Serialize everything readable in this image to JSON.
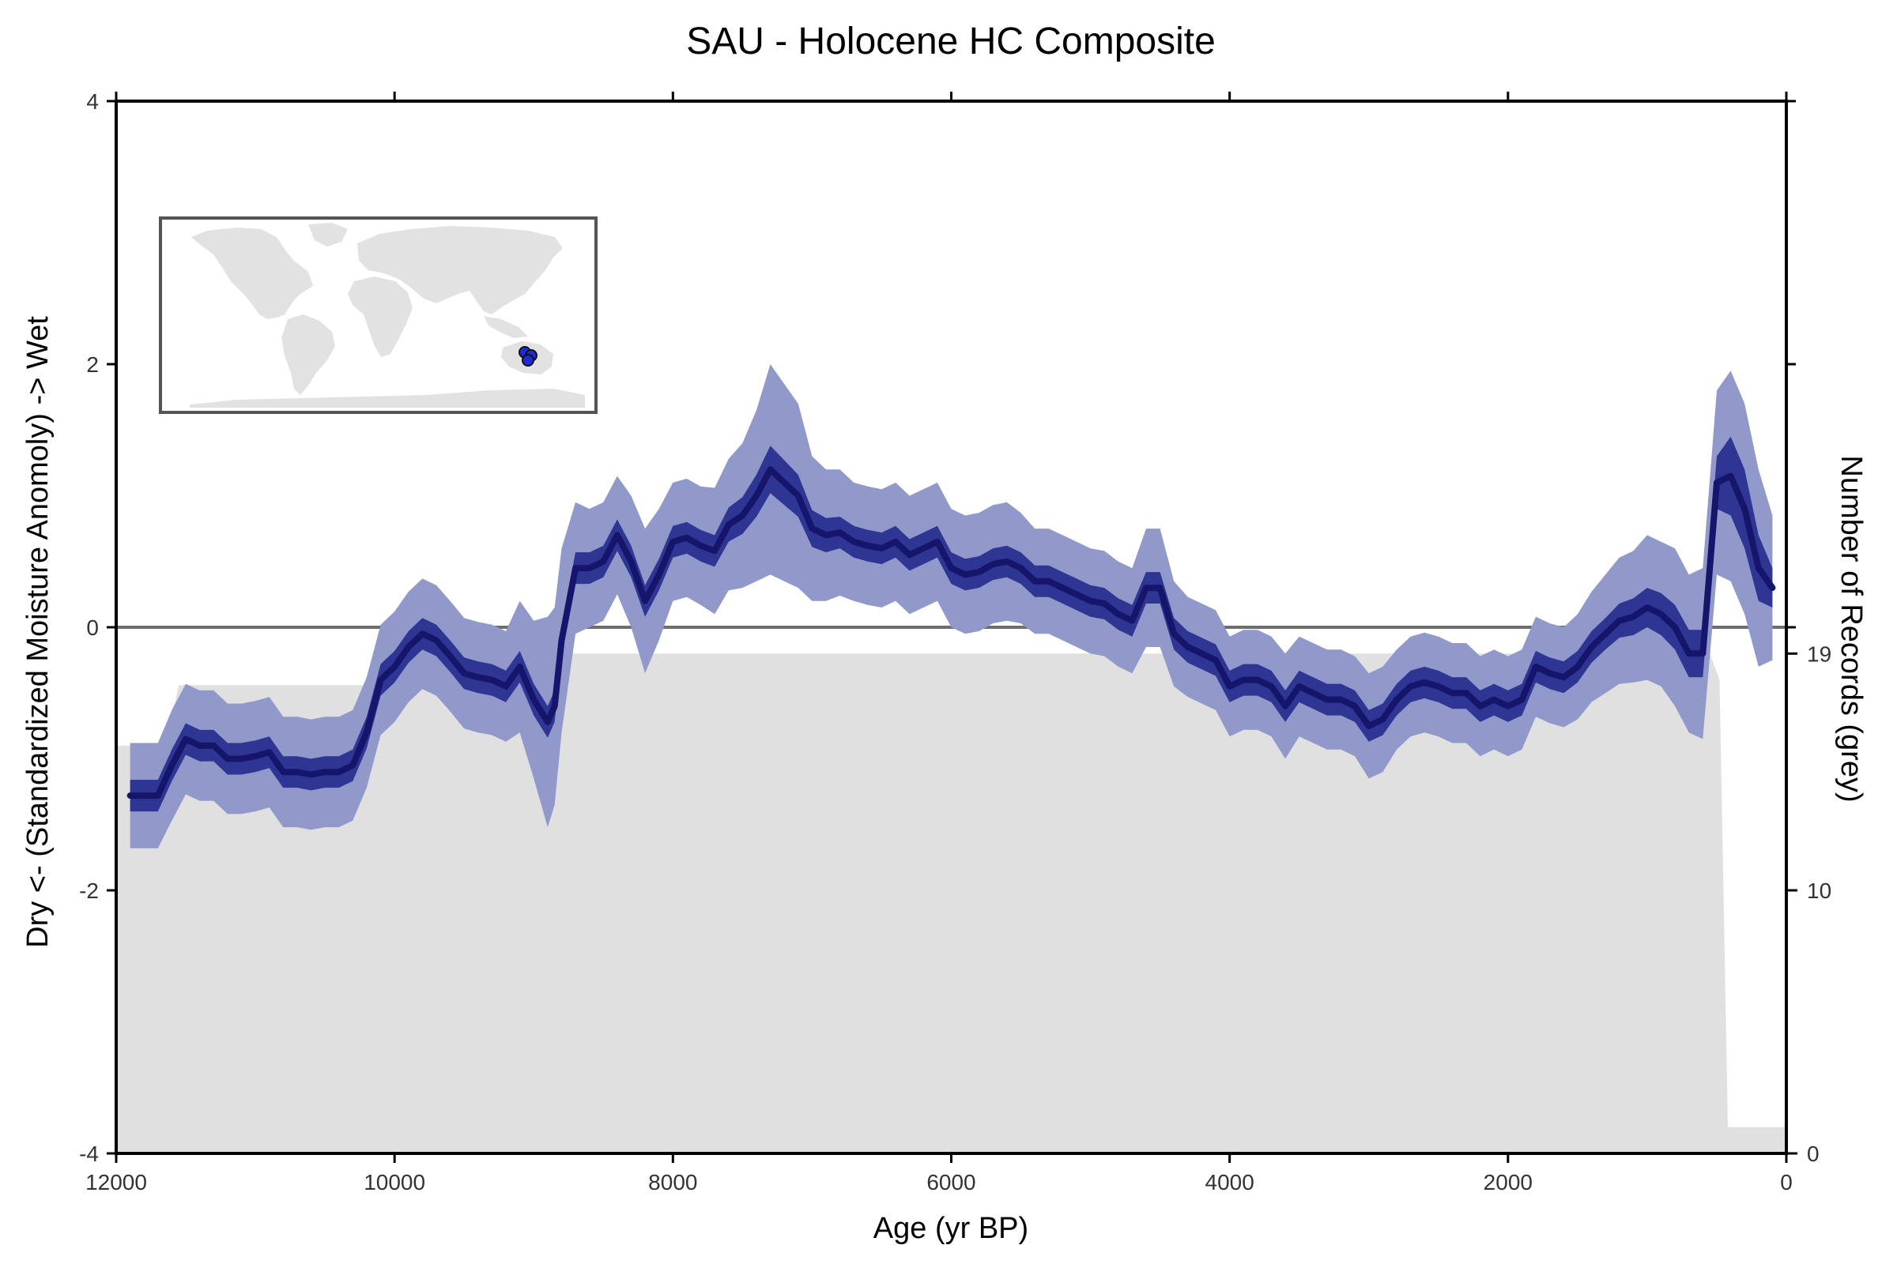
{
  "chart_data": {
    "type": "area",
    "title": "SAU - Holocene HC Composite",
    "xlabel": "Age (yr BP)",
    "ylabel": "Dry <- (Standardized Moisture Anomoly) -> Wet",
    "y2label": "Number of Records (grey)",
    "xlim": [
      12000,
      0
    ],
    "ylim": [
      -4,
      4
    ],
    "y2lim": [
      0,
      40
    ],
    "x_ticks": [
      12000,
      10000,
      8000,
      6000,
      4000,
      2000,
      0
    ],
    "x_tick_labels": [
      "12000",
      "10000",
      "8000",
      "6000",
      "4000",
      "2000",
      "0"
    ],
    "y_ticks": [
      -4,
      -2,
      0,
      2,
      4
    ],
    "y_tick_labels": [
      "-4",
      "-2",
      "0",
      "2",
      "4"
    ],
    "y2_ticks": [
      0,
      10,
      19
    ],
    "y2_tick_labels": [
      "0",
      "10",
      "19"
    ],
    "reference_line": 0,
    "colors": {
      "median": "#15166b",
      "band_inner": "#2e3593",
      "band_outer": "#9199cb",
      "records": "#e0e0e0",
      "zero_line": "#6e6e6e",
      "frame": "#000000"
    },
    "composite": {
      "age": [
        11900,
        11700,
        11600,
        11500,
        11400,
        11300,
        11200,
        11100,
        11000,
        10900,
        10800,
        10700,
        10600,
        10500,
        10400,
        10300,
        10200,
        10100,
        10000,
        9900,
        9800,
        9700,
        9600,
        9500,
        9400,
        9300,
        9200,
        9100,
        9000,
        8900,
        8850,
        8800,
        8700,
        8600,
        8500,
        8400,
        8300,
        8200,
        8100,
        8000,
        7900,
        7800,
        7700,
        7600,
        7500,
        7400,
        7300,
        7200,
        7100,
        7000,
        6900,
        6800,
        6700,
        6600,
        6500,
        6400,
        6300,
        6200,
        6100,
        6000,
        5900,
        5800,
        5700,
        5600,
        5500,
        5400,
        5300,
        5200,
        5100,
        5000,
        4900,
        4800,
        4700,
        4600,
        4500,
        4400,
        4300,
        4200,
        4100,
        4000,
        3900,
        3800,
        3700,
        3600,
        3500,
        3400,
        3300,
        3200,
        3100,
        3000,
        2900,
        2800,
        2700,
        2600,
        2500,
        2400,
        2300,
        2200,
        2100,
        2000,
        1900,
        1800,
        1700,
        1600,
        1500,
        1400,
        1300,
        1200,
        1100,
        1000,
        900,
        800,
        700,
        600,
        500,
        400,
        300,
        200,
        100
      ],
      "median": [
        -1.28,
        -1.28,
        -1.05,
        -0.85,
        -0.9,
        -0.9,
        -1.0,
        -1.0,
        -0.98,
        -0.95,
        -1.1,
        -1.1,
        -1.12,
        -1.1,
        -1.1,
        -1.05,
        -0.8,
        -0.4,
        -0.3,
        -0.15,
        -0.05,
        -0.1,
        -0.22,
        -0.35,
        -0.38,
        -0.4,
        -0.45,
        -0.3,
        -0.55,
        -0.72,
        -0.6,
        -0.1,
        0.45,
        0.45,
        0.5,
        0.7,
        0.5,
        0.2,
        0.4,
        0.65,
        0.68,
        0.62,
        0.58,
        0.78,
        0.85,
        1.0,
        1.2,
        1.1,
        1.0,
        0.75,
        0.7,
        0.72,
        0.65,
        0.62,
        0.6,
        0.65,
        0.55,
        0.6,
        0.65,
        0.45,
        0.4,
        0.42,
        0.48,
        0.5,
        0.45,
        0.35,
        0.35,
        0.3,
        0.25,
        0.2,
        0.18,
        0.1,
        0.05,
        0.3,
        0.3,
        -0.05,
        -0.15,
        -0.2,
        -0.25,
        -0.45,
        -0.4,
        -0.4,
        -0.45,
        -0.6,
        -0.45,
        -0.5,
        -0.55,
        -0.55,
        -0.6,
        -0.75,
        -0.7,
        -0.55,
        -0.45,
        -0.42,
        -0.45,
        -0.5,
        -0.5,
        -0.6,
        -0.55,
        -0.6,
        -0.55,
        -0.3,
        -0.35,
        -0.38,
        -0.3,
        -0.15,
        -0.05,
        0.05,
        0.08,
        0.15,
        0.1,
        0.0,
        -0.2,
        -0.2,
        1.1,
        1.15,
        0.9,
        0.45,
        0.3
      ],
      "inner_half_width": [
        0.12,
        0.12,
        0.12,
        0.12,
        0.12,
        0.12,
        0.12,
        0.12,
        0.12,
        0.12,
        0.12,
        0.12,
        0.12,
        0.12,
        0.12,
        0.12,
        0.12,
        0.12,
        0.12,
        0.12,
        0.12,
        0.12,
        0.12,
        0.12,
        0.12,
        0.12,
        0.12,
        0.12,
        0.12,
        0.12,
        0.12,
        0.12,
        0.12,
        0.12,
        0.12,
        0.12,
        0.12,
        0.12,
        0.12,
        0.12,
        0.12,
        0.12,
        0.12,
        0.13,
        0.14,
        0.16,
        0.18,
        0.17,
        0.16,
        0.14,
        0.13,
        0.12,
        0.12,
        0.12,
        0.12,
        0.12,
        0.12,
        0.12,
        0.12,
        0.12,
        0.12,
        0.12,
        0.12,
        0.12,
        0.12,
        0.12,
        0.12,
        0.12,
        0.12,
        0.12,
        0.12,
        0.12,
        0.12,
        0.12,
        0.12,
        0.12,
        0.12,
        0.12,
        0.12,
        0.12,
        0.12,
        0.12,
        0.12,
        0.12,
        0.12,
        0.12,
        0.12,
        0.12,
        0.12,
        0.12,
        0.12,
        0.12,
        0.12,
        0.12,
        0.12,
        0.12,
        0.12,
        0.12,
        0.12,
        0.12,
        0.12,
        0.12,
        0.12,
        0.12,
        0.12,
        0.12,
        0.12,
        0.13,
        0.14,
        0.15,
        0.16,
        0.17,
        0.18,
        0.18,
        0.2,
        0.3,
        0.3,
        0.25,
        0.15
      ],
      "outer_half_width": [
        0.4,
        0.4,
        0.42,
        0.42,
        0.42,
        0.42,
        0.42,
        0.42,
        0.42,
        0.42,
        0.42,
        0.42,
        0.42,
        0.42,
        0.42,
        0.42,
        0.42,
        0.42,
        0.42,
        0.42,
        0.42,
        0.42,
        0.42,
        0.42,
        0.42,
        0.42,
        0.42,
        0.5,
        0.6,
        0.8,
        0.75,
        0.7,
        0.5,
        0.45,
        0.45,
        0.45,
        0.5,
        0.55,
        0.5,
        0.45,
        0.45,
        0.45,
        0.48,
        0.5,
        0.55,
        0.65,
        0.8,
        0.75,
        0.7,
        0.55,
        0.5,
        0.48,
        0.45,
        0.45,
        0.45,
        0.45,
        0.45,
        0.45,
        0.45,
        0.45,
        0.45,
        0.45,
        0.45,
        0.45,
        0.42,
        0.4,
        0.4,
        0.4,
        0.4,
        0.4,
        0.4,
        0.4,
        0.4,
        0.45,
        0.45,
        0.4,
        0.38,
        0.38,
        0.38,
        0.38,
        0.38,
        0.38,
        0.38,
        0.4,
        0.38,
        0.38,
        0.38,
        0.38,
        0.38,
        0.4,
        0.4,
        0.38,
        0.38,
        0.38,
        0.38,
        0.38,
        0.38,
        0.38,
        0.38,
        0.38,
        0.38,
        0.38,
        0.38,
        0.38,
        0.4,
        0.42,
        0.45,
        0.48,
        0.5,
        0.55,
        0.55,
        0.6,
        0.6,
        0.65,
        0.7,
        0.8,
        0.8,
        0.75,
        0.55
      ]
    },
    "records": {
      "age": [
        12000,
        11650,
        11550,
        9350,
        9270,
        550,
        480,
        420,
        0
      ],
      "count": [
        15.5,
        15.5,
        17.8,
        17.8,
        19,
        19,
        18,
        1,
        1
      ]
    },
    "inset_map": {
      "marker_color": "#1d2bd6",
      "marker_count": 3
    }
  }
}
